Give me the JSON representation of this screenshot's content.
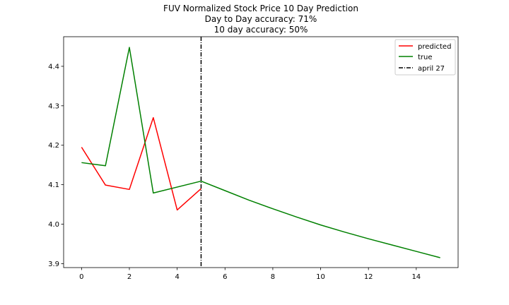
{
  "chart_data": {
    "type": "line",
    "title_lines": [
      "FUV Normalized Stock Price 10 Day Prediction",
      "Day to Day accuracy: 71%",
      "10 day accuracy: 50%"
    ],
    "xlabel": "",
    "ylabel": "",
    "xlim": [
      -0.75,
      15.75
    ],
    "ylim": [
      3.89,
      4.475
    ],
    "xticks": [
      0,
      2,
      4,
      6,
      8,
      10,
      12,
      14
    ],
    "xtick_labels": [
      "0",
      "2",
      "4",
      "6",
      "8",
      "10",
      "12",
      "14"
    ],
    "yticks": [
      3.9,
      4.0,
      4.1,
      4.2,
      4.3,
      4.4
    ],
    "ytick_labels": [
      "3.9",
      "4.0",
      "4.1",
      "4.2",
      "4.3",
      "4.4"
    ],
    "grid": false,
    "legend_position": "top-right",
    "series": [
      {
        "name": "predicted",
        "color": "#ff0000",
        "x": [
          0,
          1,
          2,
          3,
          4,
          5
        ],
        "values": [
          4.195,
          4.099,
          4.088,
          4.27,
          4.036,
          4.09
        ]
      },
      {
        "name": "true",
        "color": "#008000",
        "x": [
          0,
          1,
          2,
          3,
          5,
          6,
          7,
          8,
          9,
          10,
          11,
          12,
          13,
          14,
          15
        ],
        "values": [
          4.156,
          4.148,
          4.448,
          4.079,
          4.109,
          4.085,
          4.061,
          4.039,
          4.018,
          3.998,
          3.98,
          3.963,
          3.947,
          3.931,
          3.915
        ]
      }
    ],
    "vlines": [
      {
        "name": "april 27",
        "x": 5,
        "color": "#000000",
        "style": "dashdot"
      }
    ]
  }
}
